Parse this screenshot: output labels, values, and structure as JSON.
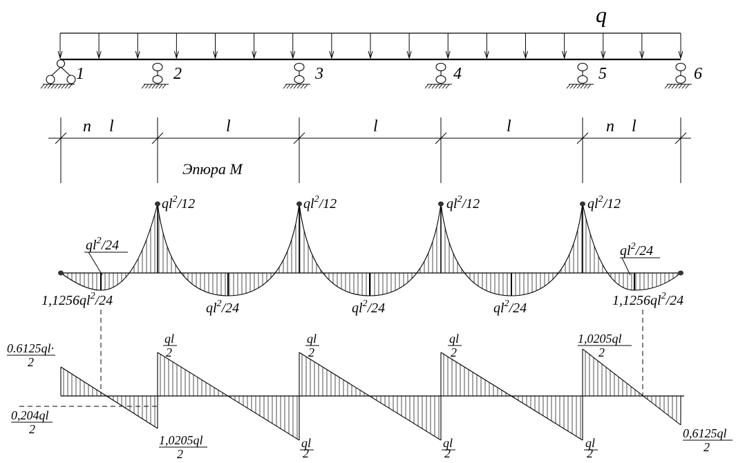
{
  "load": {
    "symbol": "q"
  },
  "supports": [
    {
      "label": "1",
      "type": "pinned"
    },
    {
      "label": "2",
      "type": "roller"
    },
    {
      "label": "3",
      "type": "roller"
    },
    {
      "label": "4",
      "type": "roller"
    },
    {
      "label": "5",
      "type": "roller"
    },
    {
      "label": "6",
      "type": "roller"
    }
  ],
  "spans": [
    {
      "prefix": "n",
      "label": "l"
    },
    {
      "prefix": "",
      "label": "l"
    },
    {
      "prefix": "",
      "label": "l"
    },
    {
      "prefix": "",
      "label": "l"
    },
    {
      "prefix": "n",
      "label": "l"
    }
  ],
  "moment_title": "Эпюра М",
  "moment_labels": {
    "support": {
      "base": "ql",
      "sup": "2",
      "suffix": "/12"
    },
    "span_mid": {
      "base": "ql",
      "sup": "2",
      "suffix": "/24"
    },
    "end_span_leader": {
      "base": "ql",
      "sup": "2",
      "suffix": "/24"
    },
    "end_span_min": {
      "base": "1,1256ql",
      "sup": "2",
      "suffix": "/24"
    }
  },
  "shear_labels": {
    "left_top": {
      "num": "0.6125ql·",
      "den": "2"
    },
    "left_mid": {
      "num": "0,204ql",
      "den": "2"
    },
    "span2_bottom": {
      "num": "1,0205ql",
      "den": "2"
    },
    "mid_top": {
      "num": "ql",
      "den": "2"
    },
    "mid_bottom": {
      "num": "ql",
      "den": "2"
    },
    "span5_top": {
      "num": "1,0205ql",
      "den": "2"
    },
    "right_bottom": {
      "num": "0,6125ql",
      "den": "2"
    }
  }
}
